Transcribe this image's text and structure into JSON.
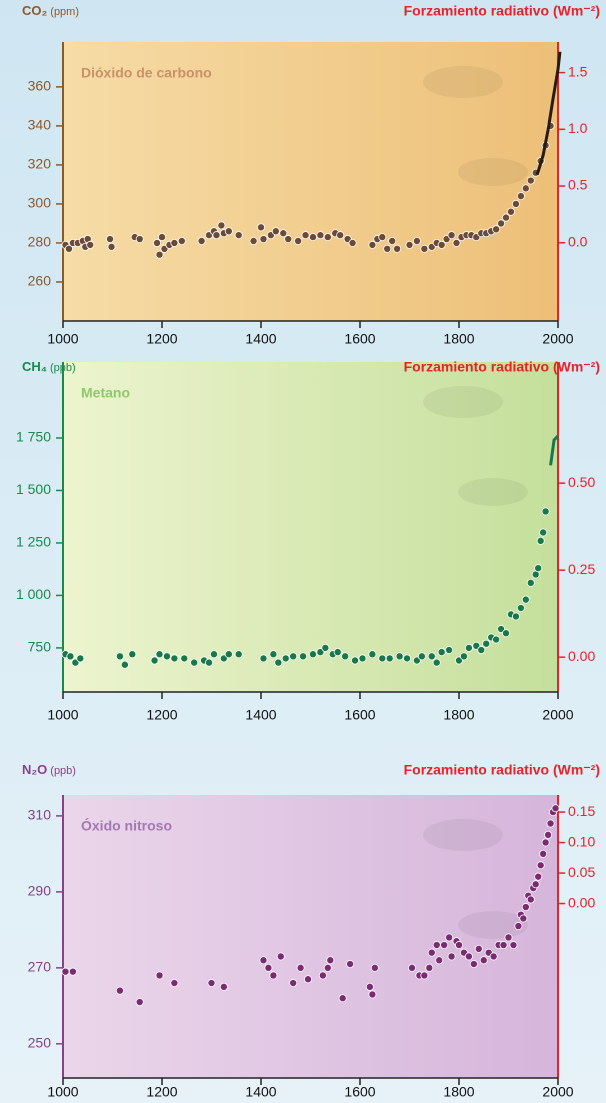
{
  "chart_data": [
    {
      "type": "scatter",
      "title": "Dióxido de carbono",
      "ylabel": "CO₂",
      "ylabel_unit": "(ppm)",
      "y2label": "Forzamiento radiativo (Wm⁻²)",
      "xlim": [
        1000,
        2000
      ],
      "xticks": [
        1000,
        1200,
        1400,
        1600,
        1800,
        2000
      ],
      "ylim": [
        240,
        383
      ],
      "yticks": [
        260,
        280,
        300,
        320,
        340,
        360
      ],
      "y2lim": [
        -0.69,
        1.77
      ],
      "y2ticks": [
        {
          "value": 0,
          "label": "0.0"
        },
        0.5,
        {
          "value": 1,
          "label": "1.0"
        },
        1.5
      ],
      "axis_color": "#8a5a2c",
      "title_color": "#c9916a",
      "background": [
        "#f6dca6",
        "#edbf78"
      ],
      "series": [
        {
          "color": "#6b4a38",
          "x": [
            1005,
            1012,
            1020,
            1030,
            1040,
            1045,
            1050,
            1055,
            1095,
            1098,
            1145,
            1155,
            1190,
            1195,
            1200,
            1205,
            1215,
            1225,
            1240,
            1280,
            1295,
            1305,
            1310,
            1320,
            1325,
            1335,
            1355,
            1385,
            1400,
            1405,
            1420,
            1430,
            1445,
            1455,
            1475,
            1490,
            1505,
            1520,
            1535,
            1550,
            1560,
            1575,
            1585,
            1625,
            1635,
            1645,
            1655,
            1665,
            1675,
            1700,
            1715,
            1730,
            1745,
            1755,
            1765,
            1775,
            1785,
            1795,
            1805,
            1815,
            1825,
            1835,
            1845,
            1855,
            1865,
            1875,
            1885,
            1895,
            1905,
            1915,
            1925,
            1935,
            1945,
            1955,
            1965,
            1975,
            1985
          ],
          "values": [
            279,
            277,
            280,
            280,
            281,
            278,
            282,
            279,
            282,
            278,
            283,
            282,
            280,
            274,
            283,
            277,
            279,
            280,
            281,
            281,
            284,
            286,
            284,
            289,
            285,
            286,
            284,
            281,
            288,
            282,
            284,
            286,
            285,
            282,
            281,
            284,
            283,
            284,
            283,
            285,
            284,
            282,
            280,
            279,
            282,
            283,
            277,
            281,
            277,
            279,
            281,
            277,
            278,
            280,
            279,
            282,
            284,
            280,
            283,
            284,
            284,
            283,
            285,
            285,
            286,
            287,
            290,
            293,
            296,
            300,
            304,
            308,
            312,
            316,
            322,
            330,
            340
          ]
        },
        {
          "color": "#2a1a12",
          "style": "line",
          "x": [
            1958,
            1970,
            1980,
            1990,
            2000,
            2004
          ],
          "values": [
            315,
            325,
            338,
            354,
            369,
            378
          ]
        }
      ]
    },
    {
      "type": "scatter",
      "title": "Metano",
      "ylabel": "CH₄",
      "ylabel_unit": "(ppb)",
      "y2label": "Forzamiento radiativo (Wm⁻²)",
      "xlim": [
        1000,
        2000
      ],
      "xticks": [
        1000,
        1200,
        1400,
        1600,
        1800,
        2000
      ],
      "ylim": [
        540,
        2112
      ],
      "yticks": [
        750,
        {
          "value": 1000,
          "label": "1 000"
        },
        {
          "value": 1250,
          "label": "1 250"
        },
        {
          "value": 1500,
          "label": "1 500"
        },
        {
          "value": 1750,
          "label": "1 750"
        }
      ],
      "y2lim": [
        -0.1,
        0.848
      ],
      "y2ticks": [
        {
          "value": 0,
          "label": "0.00"
        },
        0.25,
        {
          "value": 0.5,
          "label": "0.50"
        }
      ],
      "axis_color": "#1a8a4a",
      "title_color": "#8ec96a",
      "background": [
        "#edf4cf",
        "#c4df9b"
      ],
      "series": [
        {
          "color": "#17784a",
          "x": [
            1005,
            1015,
            1025,
            1035,
            1115,
            1125,
            1140,
            1185,
            1195,
            1210,
            1225,
            1245,
            1265,
            1285,
            1295,
            1305,
            1325,
            1335,
            1355,
            1405,
            1425,
            1435,
            1450,
            1465,
            1485,
            1505,
            1520,
            1530,
            1545,
            1555,
            1570,
            1590,
            1605,
            1625,
            1645,
            1660,
            1680,
            1695,
            1715,
            1725,
            1745,
            1755,
            1765,
            1780,
            1800,
            1810,
            1820,
            1835,
            1845,
            1855,
            1865,
            1875,
            1885,
            1895,
            1905,
            1915,
            1925,
            1935,
            1945,
            1955,
            1960,
            1965,
            1970,
            1975
          ],
          "values": [
            720,
            710,
            680,
            700,
            710,
            670,
            720,
            690,
            720,
            710,
            700,
            700,
            680,
            690,
            680,
            720,
            700,
            720,
            720,
            700,
            720,
            680,
            700,
            710,
            710,
            720,
            730,
            750,
            720,
            730,
            710,
            690,
            700,
            720,
            700,
            700,
            710,
            700,
            690,
            710,
            710,
            680,
            730,
            740,
            690,
            710,
            750,
            760,
            740,
            770,
            800,
            790,
            840,
            820,
            910,
            900,
            940,
            980,
            1060,
            1100,
            1130,
            1260,
            1300,
            1400
          ]
        },
        {
          "color": "#17784a",
          "style": "line",
          "x": [
            1985,
            1992,
            2000
          ],
          "values": [
            1620,
            1740,
            1760
          ]
        }
      ]
    },
    {
      "type": "scatter",
      "title": "Óxido nitroso",
      "ylabel": "N₂O",
      "ylabel_unit": "(ppb)",
      "y2label": "Forzamiento radiativo (Wm⁻²)",
      "xlim": [
        1000,
        2000
      ],
      "xticks": [
        1000,
        1200,
        1400,
        1600,
        1800,
        2000
      ],
      "ylim": [
        241,
        315.5
      ],
      "yticks": [
        250,
        270,
        290,
        310
      ],
      "y2lim": [
        -0.286,
        0.178
      ],
      "y2ticks": [
        {
          "value": 0,
          "label": "0.00"
        },
        0.05,
        {
          "value": 0.1,
          "label": "0.10"
        },
        0.15
      ],
      "axis_color": "#8a3f8a",
      "title_color": "#a478b4",
      "background": [
        "#ead6ea",
        "#d6b5db"
      ],
      "series": [
        {
          "color": "#7b2a73",
          "x": [
            1005,
            1020,
            1115,
            1155,
            1195,
            1225,
            1300,
            1325,
            1405,
            1415,
            1425,
            1440,
            1465,
            1480,
            1495,
            1525,
            1535,
            1540,
            1565,
            1580,
            1620,
            1625,
            1630,
            1705,
            1720,
            1730,
            1740,
            1745,
            1755,
            1760,
            1770,
            1780,
            1785,
            1795,
            1800,
            1810,
            1820,
            1830,
            1840,
            1850,
            1860,
            1870,
            1880,
            1890,
            1900,
            1910,
            1920,
            1925,
            1930,
            1935,
            1940,
            1945,
            1950,
            1955,
            1960,
            1965,
            1970,
            1975,
            1980,
            1985,
            1990,
            1995
          ],
          "values": [
            269,
            269,
            264,
            261,
            268,
            266,
            266,
            265,
            272,
            270,
            268,
            273,
            266,
            270,
            267,
            268,
            270,
            272,
            262,
            271,
            265,
            263,
            270,
            270,
            268,
            268,
            270,
            274,
            276,
            272,
            276,
            278,
            273,
            277,
            276,
            274,
            273,
            271,
            275,
            272,
            274,
            273,
            276,
            276,
            278,
            276,
            281,
            284,
            283,
            286,
            289,
            288,
            291,
            292,
            294,
            297,
            300,
            303,
            305,
            308,
            311,
            312
          ]
        }
      ]
    }
  ]
}
